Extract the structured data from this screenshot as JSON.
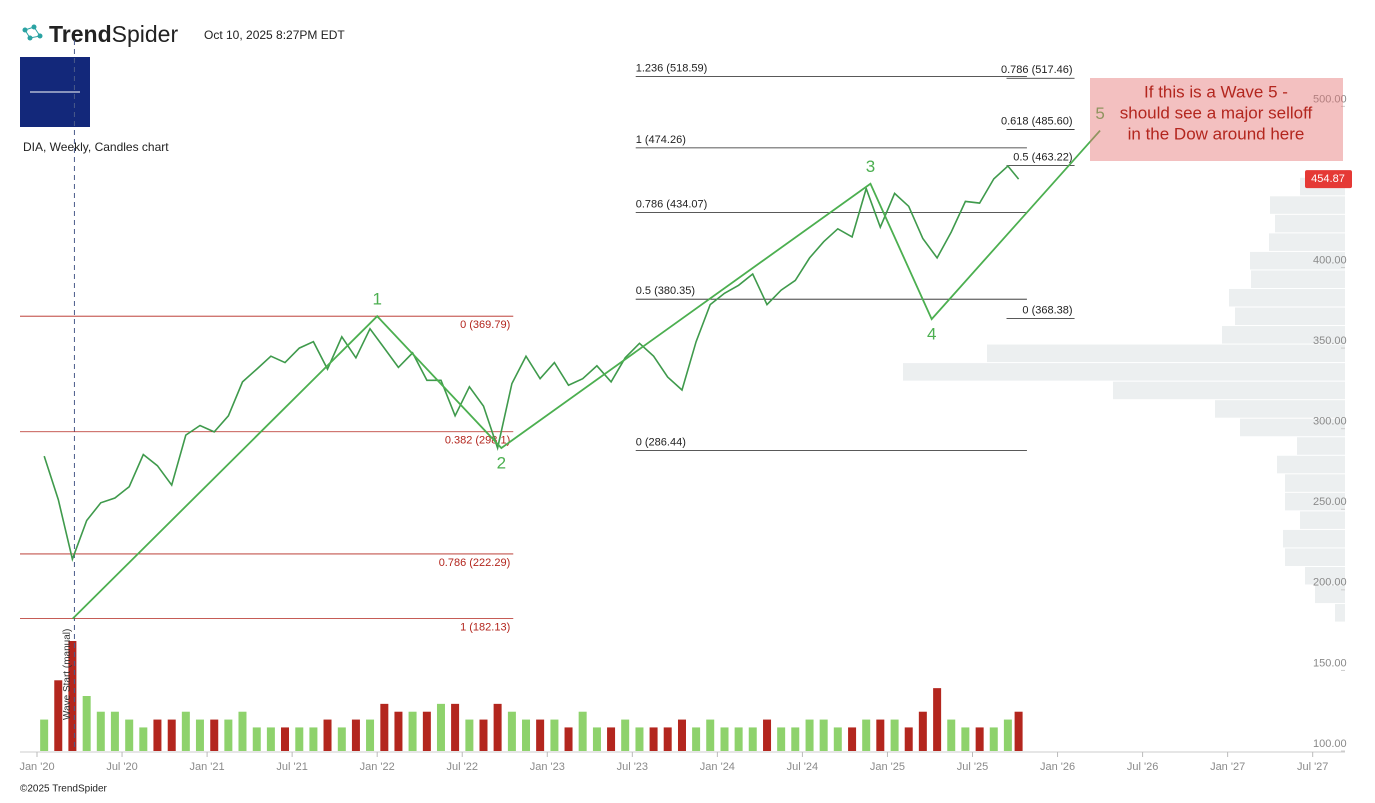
{
  "header": {
    "brand_a": "Trend",
    "brand_b": "Spider",
    "timestamp": "Oct 10, 2025 8:27PM EDT",
    "chart_label": "DIA, Weekly, Candles chart",
    "copyright": "©2025 TrendSpider"
  },
  "chart_data": {
    "type": "line",
    "x": [
      2020.042,
      2020.125,
      2020.208,
      2020.292,
      2020.375,
      2020.458,
      2020.542,
      2020.625,
      2020.708,
      2020.792,
      2020.875,
      2020.958,
      2021.042,
      2021.125,
      2021.208,
      2021.292,
      2021.375,
      2021.458,
      2021.542,
      2021.625,
      2021.708,
      2021.792,
      2021.875,
      2021.958,
      2022.042,
      2022.125,
      2022.208,
      2022.292,
      2022.375,
      2022.458,
      2022.542,
      2022.625,
      2022.708,
      2022.792,
      2022.875,
      2022.958,
      2023.042,
      2023.125,
      2023.208,
      2023.292,
      2023.375,
      2023.458,
      2023.542,
      2023.625,
      2023.708,
      2023.792,
      2023.875,
      2023.958,
      2024.042,
      2024.125,
      2024.208,
      2024.292,
      2024.375,
      2024.458,
      2024.542,
      2024.625,
      2024.708,
      2024.792,
      2024.875,
      2024.958,
      2025.042,
      2025.125,
      2025.208,
      2025.292,
      2025.375,
      2025.458,
      2025.542,
      2025.625,
      2025.708,
      2025.771
    ],
    "values": [
      283,
      256,
      219,
      243,
      254,
      257,
      264,
      284,
      277,
      265,
      296,
      302,
      298,
      308,
      329,
      337,
      345,
      341,
      350,
      354,
      337,
      357,
      344,
      362,
      350,
      338,
      347,
      330,
      330,
      308,
      326,
      314,
      288,
      328,
      345,
      331,
      341,
      327,
      331,
      339,
      329,
      344,
      353,
      345,
      332,
      324,
      354,
      377,
      384,
      389,
      396,
      377,
      386,
      392,
      406,
      416,
      424,
      419,
      449,
      425,
      446,
      438,
      418,
      406,
      422,
      441,
      440,
      455,
      463,
      454.87
    ],
    "color": "#3f9a4c",
    "volume": [
      4,
      9,
      14,
      7,
      5,
      5,
      4,
      3,
      4,
      4,
      5,
      4,
      4,
      4,
      5,
      3,
      3,
      3,
      3,
      3,
      4,
      3,
      4,
      4,
      6,
      5,
      5,
      5,
      6,
      6,
      4,
      4,
      6,
      5,
      4,
      4,
      4,
      3,
      5,
      3,
      3,
      4,
      3,
      3,
      3,
      4,
      3,
      4,
      3,
      3,
      3,
      4,
      3,
      3,
      4,
      4,
      3,
      3,
      4,
      4,
      4,
      3,
      5,
      8,
      4,
      3,
      3,
      3,
      4,
      5
    ],
    "up_color": "#8ed26c",
    "down_color": "#b3261e",
    "ylim": [
      100,
      566
    ],
    "yticks": [
      {
        "value": 100,
        "label": "100.00"
      },
      {
        "value": 150,
        "label": "150.00"
      },
      {
        "value": 200,
        "label": "200.00"
      },
      {
        "value": 250,
        "label": "250.00"
      },
      {
        "value": 300,
        "label": "300.00"
      },
      {
        "value": 350,
        "label": "350.00"
      },
      {
        "value": 400,
        "label": "400.00"
      },
      {
        "value": 450,
        "label": "450.00"
      },
      {
        "value": 500,
        "label": "500.00"
      }
    ],
    "xlim": [
      2019.9,
      2027.69
    ],
    "xticks": [
      {
        "value": 2020,
        "label": "Jan '20"
      },
      {
        "value": 2020.5,
        "label": "Jul '20"
      },
      {
        "value": 2021,
        "label": "Jan '21"
      },
      {
        "value": 2021.5,
        "label": "Jul '21"
      },
      {
        "value": 2022,
        "label": "Jan '22"
      },
      {
        "value": 2022.5,
        "label": "Jul '22"
      },
      {
        "value": 2023,
        "label": "Jan '23"
      },
      {
        "value": 2023.5,
        "label": "Jul '23"
      },
      {
        "value": 2024,
        "label": "Jan '24"
      },
      {
        "value": 2024.5,
        "label": "Jul '24"
      },
      {
        "value": 2025,
        "label": "Jan '25"
      },
      {
        "value": 2025.5,
        "label": "Jul '25"
      },
      {
        "value": 2026,
        "label": "Jan '26"
      },
      {
        "value": 2026.5,
        "label": "Jul '26"
      },
      {
        "value": 2027,
        "label": "Jan '27"
      },
      {
        "value": 2027.5,
        "label": "Jul '27"
      }
    ],
    "last_price": {
      "value": 454.87,
      "label": "454.87"
    },
    "fib_sets": [
      {
        "x": [
          2019.9,
          2022.8
        ],
        "color": "#b3261e",
        "levels": [
          {
            "value": 369.79,
            "label": "0 (369.79)"
          },
          {
            "value": 298.1,
            "label": "0.382 (298.1)"
          },
          {
            "value": 222.29,
            "label": "0.786 (222.29)"
          },
          {
            "value": 182.13,
            "label": "1 (182.13)"
          }
        ]
      },
      {
        "x": [
          2023.52,
          2025.82
        ],
        "color": "#222222",
        "levels": [
          {
            "value": 518.59,
            "label": "1.236 (518.59)"
          },
          {
            "value": 474.26,
            "label": "1 (474.26)"
          },
          {
            "value": 434.07,
            "label": "0.786 (434.07)"
          },
          {
            "value": 380.35,
            "label": "0.5 (380.35)"
          },
          {
            "value": 286.44,
            "label": "0 (286.44)"
          }
        ]
      },
      {
        "x": [
          2025.7,
          2026.1
        ],
        "color": "#222222",
        "levels": [
          {
            "value": 517.46,
            "label": "0.786 (517.46)"
          },
          {
            "value": 485.6,
            "label": "0.618 (485.60)"
          },
          {
            "value": 463.22,
            "label": "0.5 (463.22)"
          },
          {
            "value": 368.38,
            "label": "0 (368.38)"
          }
        ]
      }
    ],
    "waves": {
      "x": [
        2020.21,
        2022.0,
        2022.73,
        2024.9,
        2025.26,
        2026.25
      ],
      "y": [
        182.13,
        369.79,
        288,
        452,
        368,
        485
      ],
      "labels": [
        null,
        "1",
        "2",
        "3",
        "4",
        "5"
      ],
      "color": "#4caf50"
    },
    "wave_start": {
      "x": 2020.22,
      "label": "Wave Start (manual)"
    },
    "volume_profile": {
      "bins": [
        180,
        191.5,
        203,
        214.5,
        226,
        237.5,
        249,
        260.5,
        272,
        283.5,
        295,
        306.5,
        318,
        329.5,
        341,
        352.5,
        364,
        375.5,
        387,
        398.5,
        410,
        421.5,
        433,
        444.5,
        456
      ],
      "values": [
        10,
        30,
        40,
        60,
        62,
        45,
        60,
        60,
        68,
        48,
        105,
        130,
        232,
        442,
        358,
        123,
        110,
        116,
        94,
        95,
        76,
        70,
        75,
        45
      ]
    },
    "annotation": {
      "lines": [
        "If this is a Wave 5 -",
        "should see a major selloff",
        "in the Dow around here"
      ]
    }
  }
}
